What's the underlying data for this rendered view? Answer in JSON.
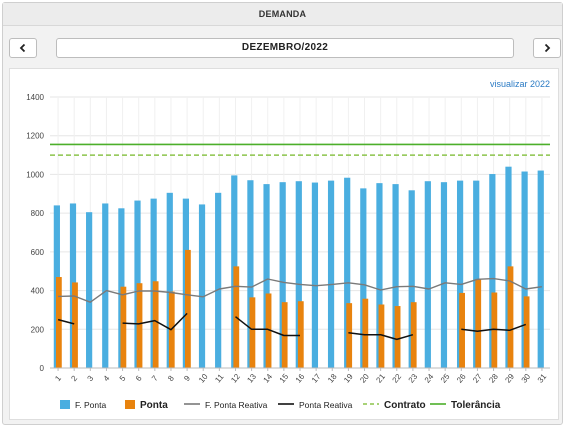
{
  "header": {
    "title": "DEMANDA"
  },
  "nav": {
    "prev_icon": "chevron-left-icon",
    "next_icon": "chevron-right-icon",
    "month": "DEZEMBRO/2022"
  },
  "view_link": "visualizar 2022",
  "colors": {
    "f_ponta": "#4aaee0",
    "ponta": "#e8830e",
    "f_ponta_reativa": "#7a7a7a",
    "ponta_reativa": "#111111",
    "contrato": "#8bc34a",
    "tolerancia": "#4caf2a"
  },
  "chart_data": {
    "type": "bar",
    "categories": [
      "1",
      "2",
      "3",
      "4",
      "5",
      "6",
      "7",
      "8",
      "9",
      "10",
      "11",
      "12",
      "13",
      "14",
      "15",
      "16",
      "17",
      "18",
      "19",
      "20",
      "21",
      "22",
      "23",
      "24",
      "25",
      "26",
      "27",
      "28",
      "29",
      "30",
      "31"
    ],
    "ylim": [
      0,
      1400
    ],
    "yticks": [
      "0",
      "200",
      "400",
      "600",
      "800",
      "1000",
      "1200",
      "1400"
    ],
    "grid": true,
    "legend_position": "bottom",
    "series": [
      {
        "name": "F. Ponta",
        "kind": "bar",
        "values": [
          840,
          850,
          805,
          850,
          825,
          865,
          875,
          905,
          875,
          845,
          905,
          995,
          970,
          950,
          960,
          965,
          958,
          968,
          983,
          928,
          955,
          950,
          918,
          965,
          960,
          968,
          968,
          1002,
          1040,
          1015,
          1020
        ]
      },
      {
        "name": "Ponta",
        "kind": "bar",
        "values": [
          470,
          442,
          null,
          null,
          420,
          438,
          448,
          395,
          610,
          null,
          null,
          525,
          365,
          385,
          340,
          345,
          null,
          null,
          335,
          358,
          328,
          320,
          340,
          null,
          null,
          388,
          460,
          390,
          525,
          370,
          null
        ]
      },
      {
        "name": "F. Ponta Reativa",
        "kind": "line",
        "values": [
          370,
          372,
          340,
          400,
          378,
          398,
          398,
          390,
          378,
          368,
          408,
          422,
          418,
          460,
          442,
          432,
          425,
          432,
          440,
          430,
          403,
          420,
          422,
          408,
          440,
          432,
          458,
          462,
          450,
          408,
          420
        ]
      },
      {
        "name": "Ponta Reativa",
        "kind": "line",
        "values": [
          250,
          228,
          null,
          null,
          232,
          228,
          245,
          198,
          282,
          null,
          null,
          265,
          200,
          200,
          168,
          168,
          null,
          null,
          182,
          172,
          172,
          148,
          172,
          null,
          null,
          200,
          190,
          200,
          195,
          225,
          null
        ]
      },
      {
        "name": "Contrato",
        "kind": "dashed",
        "value": 1100
      },
      {
        "name": "Tolerância",
        "kind": "hline",
        "value": 1155
      }
    ]
  }
}
